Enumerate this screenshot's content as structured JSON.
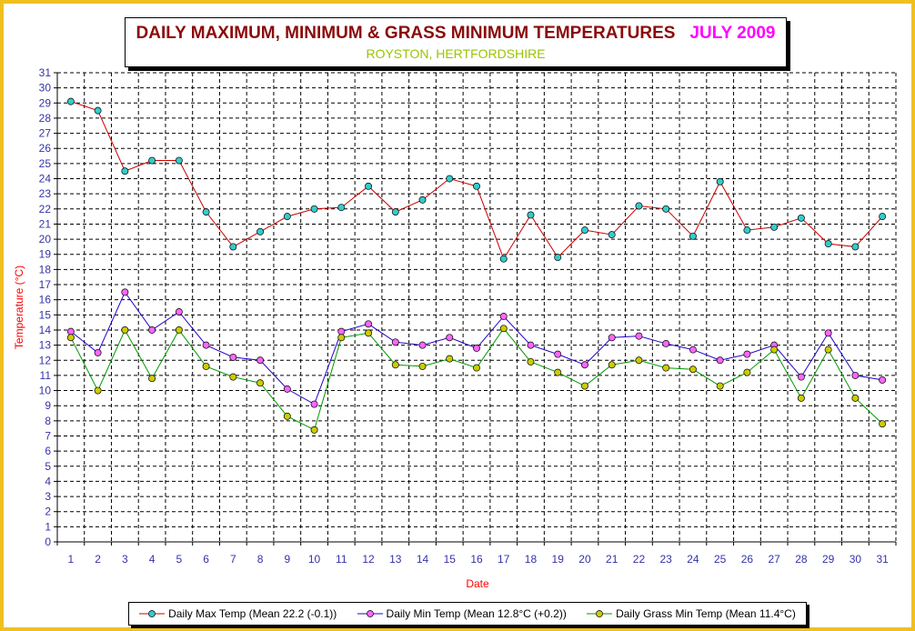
{
  "title": {
    "main": "DAILY MAXIMUM, MINIMUM & GRASS MINIMUM TEMPERATURES",
    "month": "JULY 2009",
    "subtitle": "ROYSTON, HERTFORDSHIRE"
  },
  "colors": {
    "frame": "#f0c020",
    "title_main": "#8b0a0a",
    "title_month": "#ff00ff",
    "subtitle": "#99c400",
    "axis_label": "#ff0000",
    "tick_label": "#3333aa"
  },
  "chart_data": {
    "type": "line",
    "xlabel": "Date",
    "ylabel": "Temperature (°C)",
    "ylim": [
      0,
      31
    ],
    "grid": true,
    "legend_position": "bottom",
    "x": [
      1,
      2,
      3,
      4,
      5,
      6,
      7,
      8,
      9,
      10,
      11,
      12,
      13,
      14,
      15,
      16,
      17,
      18,
      19,
      20,
      21,
      22,
      23,
      24,
      25,
      26,
      27,
      28,
      29,
      30,
      31
    ],
    "series": [
      {
        "name": "Daily Max Temp (Mean 22.2 (-0.1))",
        "line_color": "#cc0000",
        "marker_color": "#33cccc",
        "values": [
          29.1,
          28.5,
          24.5,
          25.2,
          25.2,
          21.8,
          19.5,
          20.5,
          21.5,
          22.0,
          22.1,
          23.5,
          21.8,
          22.6,
          24.0,
          23.5,
          18.7,
          21.6,
          18.8,
          20.6,
          20.3,
          22.2,
          22.0,
          20.2,
          23.8,
          20.6,
          20.8,
          21.4,
          19.7,
          19.5,
          21.5
        ]
      },
      {
        "name": "Daily Min Temp (Mean 12.8°C (+0.2))",
        "line_color": "#2200cc",
        "marker_color": "#ff66ff",
        "values": [
          13.9,
          12.5,
          16.5,
          14.0,
          15.2,
          13.0,
          12.2,
          12.0,
          10.1,
          9.1,
          13.9,
          14.4,
          13.2,
          13.0,
          13.5,
          12.8,
          14.9,
          13.0,
          12.4,
          11.7,
          13.5,
          13.6,
          13.1,
          12.7,
          12.0,
          12.4,
          13.0,
          10.9,
          13.8,
          11.0,
          10.7
        ]
      },
      {
        "name": "Daily Grass Min Temp (Mean 11.4°C)",
        "line_color": "#009900",
        "marker_color": "#cccc00",
        "values": [
          13.5,
          10.0,
          14.0,
          10.8,
          14.0,
          11.6,
          10.9,
          10.5,
          8.3,
          7.4,
          13.5,
          13.8,
          11.7,
          11.6,
          12.1,
          11.5,
          14.1,
          11.9,
          11.2,
          10.3,
          11.7,
          12.0,
          11.5,
          11.4,
          10.3,
          11.2,
          12.7,
          9.5,
          12.7,
          9.5,
          7.8
        ]
      }
    ]
  }
}
